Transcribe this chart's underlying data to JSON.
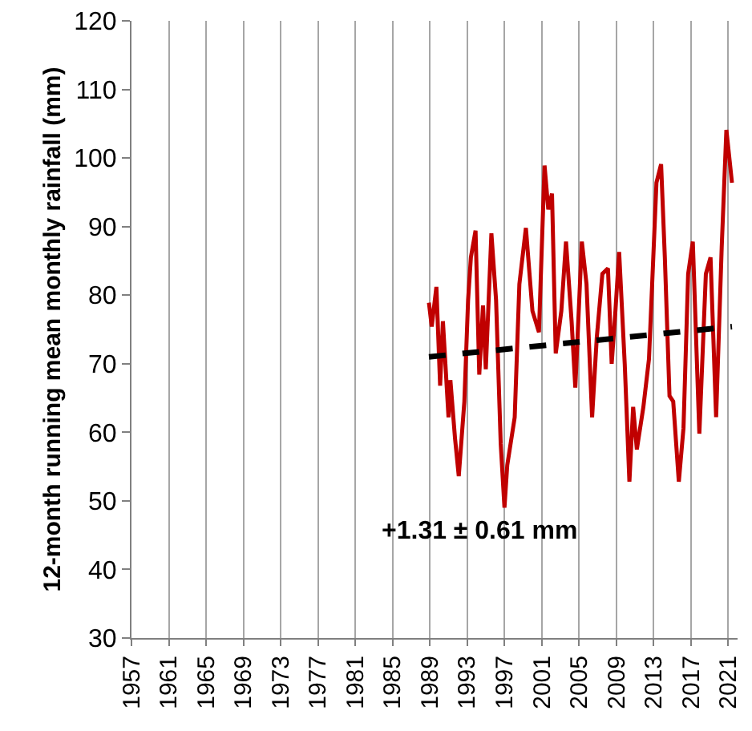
{
  "chart_data": {
    "type": "line",
    "ylabel": "12-month running mean monthly rainfall (mm)",
    "xlim": [
      1957,
      2022
    ],
    "xticks": [
      1957,
      1961,
      1965,
      1969,
      1973,
      1977,
      1981,
      1985,
      1989,
      1993,
      1997,
      2001,
      2005,
      2009,
      2013,
      2017,
      2021
    ],
    "ylim": [
      30,
      120
    ],
    "yticks": [
      30,
      40,
      50,
      60,
      70,
      80,
      90,
      100,
      110,
      120
    ],
    "grid": "x",
    "marker": "none",
    "annotations": [
      "+1.31 ± 0.61 mm"
    ],
    "series": [
      {
        "color": "#c00000",
        "line_style": "solid",
        "x": [
          1988.9,
          1989.2,
          1989.7,
          1990.1,
          1990.4,
          1991.0,
          1991.2,
          1991.7,
          1992.1,
          1992.7,
          1993.1,
          1993.4,
          1993.9,
          1994.3,
          1994.7,
          1995.0,
          1995.6,
          1996.1,
          1996.6,
          1997.0,
          1997.3,
          1998.1,
          1998.6,
          1999.3,
          2000.0,
          2000.7,
          2001.3,
          2001.7,
          2002.1,
          2002.5,
          2003.1,
          2003.6,
          2004.2,
          2004.6,
          2005.3,
          2005.8,
          2006.4,
          2006.9,
          2007.5,
          2008.1,
          2008.5,
          2008.9,
          2009.3,
          2009.9,
          2010.4,
          2010.8,
          2011.2,
          2011.9,
          2012.5,
          2013.3,
          2013.8,
          2014.2,
          2014.7,
          2015.1,
          2015.7,
          2016.2,
          2016.7,
          2017.2,
          2017.9,
          2018.6,
          2019.1,
          2019.7,
          2020.3,
          2020.8,
          2021.4
        ],
        "values": [
          78.9,
          75.4,
          81.2,
          66.8,
          76.2,
          62.2,
          67.6,
          59.1,
          53.6,
          64.5,
          79.3,
          85.5,
          89.4,
          68.4,
          78.5,
          69.2,
          89.0,
          79.3,
          58.3,
          49.0,
          55.2,
          62.2,
          81.6,
          89.8,
          77.7,
          74.6,
          98.9,
          92.5,
          94.8,
          71.5,
          77.7,
          87.8,
          76.2,
          66.5,
          87.8,
          81.6,
          62.2,
          73.8,
          83.1,
          83.9,
          70.0,
          77.7,
          86.3,
          70.0,
          52.8,
          63.7,
          57.5,
          63.7,
          70.7,
          96.4,
          99.1,
          85.5,
          65.3,
          64.5,
          52.8,
          60.6,
          83.1,
          87.8,
          59.8,
          83.1,
          85.5,
          62.2,
          87.0,
          104.1,
          96.4
        ]
      },
      {
        "color": "#000000",
        "line_style": "dashed",
        "x": [
          1988.9,
          2021.4
        ],
        "values": [
          71.0,
          75.4
        ]
      }
    ]
  }
}
